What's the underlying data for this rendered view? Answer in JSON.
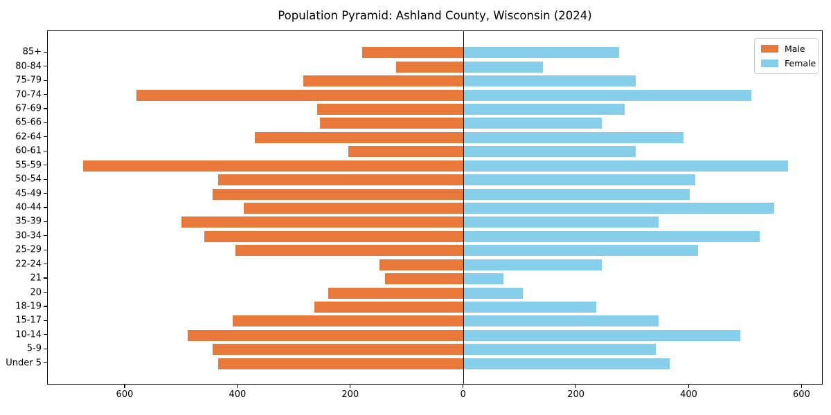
{
  "title": "Population Pyramid: Ashland County, Wisconsin (2024)",
  "legend": {
    "items": [
      {
        "label": "Male",
        "color": "#e8793a"
      },
      {
        "label": "Female",
        "color": "#87ceeb"
      }
    ]
  },
  "chart_data": {
    "type": "bar",
    "subtype": "population-pyramid-diverging-horizontal",
    "title": "Population Pyramid: Ashland County, Wisconsin (2024)",
    "categories": [
      "85+",
      "80-84",
      "75-79",
      "70-74",
      "67-69",
      "65-66",
      "62-64",
      "60-61",
      "55-59",
      "50-54",
      "45-49",
      "40-44",
      "35-39",
      "30-34",
      "25-29",
      "22-24",
      "21",
      "20",
      "18-19",
      "15-17",
      "10-14",
      "5-9",
      "Under 5"
    ],
    "series": [
      {
        "name": "Male",
        "side": "left",
        "color": "#e8793a",
        "values": [
          180,
          120,
          285,
          580,
          260,
          255,
          370,
          205,
          675,
          435,
          445,
          390,
          500,
          460,
          405,
          150,
          140,
          240,
          265,
          410,
          490,
          445,
          435
        ]
      },
      {
        "name": "Female",
        "side": "right",
        "color": "#87ceeb",
        "values": [
          275,
          140,
          305,
          510,
          285,
          245,
          390,
          305,
          575,
          410,
          400,
          550,
          345,
          525,
          415,
          245,
          70,
          105,
          235,
          345,
          490,
          340,
          365
        ]
      }
    ],
    "x_ticks": [
      -600,
      -400,
      -200,
      0,
      200,
      400,
      600
    ],
    "x_tick_labels": [
      "600",
      "400",
      "200",
      "0",
      "200",
      "400",
      "600"
    ],
    "xlim": [
      -737.5,
      637.5
    ],
    "grid": false,
    "zero_line": true,
    "legend_position": "upper-right"
  }
}
